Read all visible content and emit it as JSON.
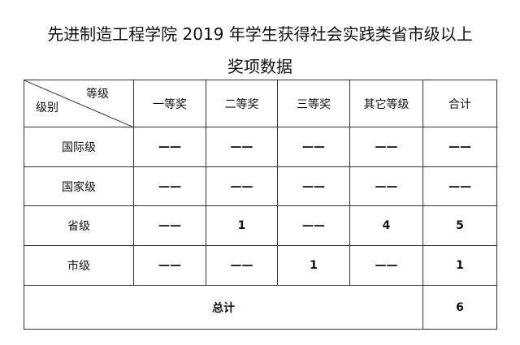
{
  "title": {
    "line1": "先进制造工程学院 2019 年学生获得社会实践类省市级以上",
    "line2": "奖项数据"
  },
  "table": {
    "corner_top": "等级",
    "corner_bottom": "级别",
    "headers": [
      "一等奖",
      "二等奖",
      "三等奖",
      "其它等级",
      "合计"
    ],
    "rows": [
      {
        "label": "国际级",
        "cells": [
          "——",
          "——",
          "——",
          "——",
          "——"
        ]
      },
      {
        "label": "国家级",
        "cells": [
          "——",
          "——",
          "——",
          "——",
          "——"
        ]
      },
      {
        "label": "省级",
        "cells": [
          "——",
          "1",
          "——",
          "4",
          "5"
        ]
      },
      {
        "label": "市级",
        "cells": [
          "——",
          "——",
          "1",
          "——",
          "1"
        ]
      }
    ],
    "total_label": "总计",
    "total_value": "6"
  }
}
